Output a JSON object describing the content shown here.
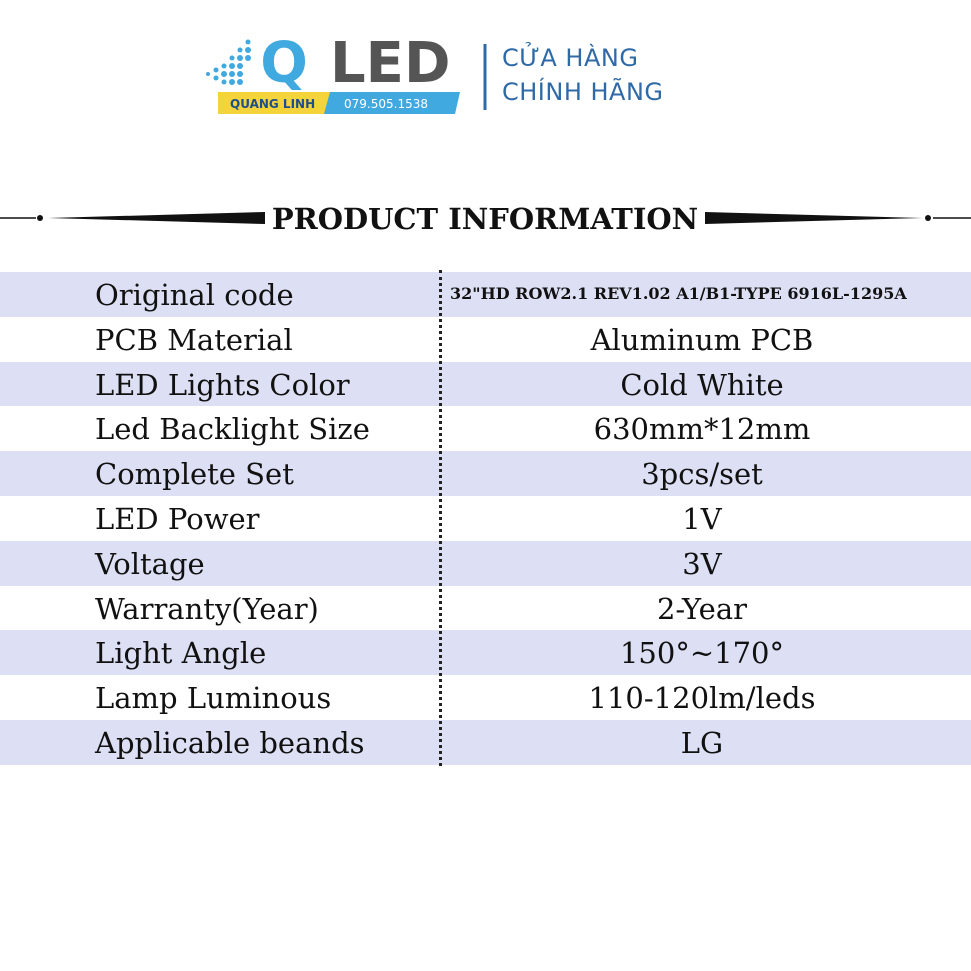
{
  "header": {
    "logo_letter": "Q",
    "logo_word": "LED",
    "brand": "QUANG LINH",
    "phone": "079.505.1538",
    "tagline": [
      "CỬA HÀNG",
      "CHÍNH HÃNG"
    ]
  },
  "heading": "PRODUCT INFORMATION",
  "table": {
    "rows": [
      [
        "Original code",
        "32\"HD ROW2.1 REV1.02 A1/B1-TYPE 6916L-1295A"
      ],
      [
        "PCB Material",
        "Aluminum PCB"
      ],
      [
        "LED Lights Color",
        "Cold White"
      ],
      [
        "Led Backlight Size",
        "630mm*12mm"
      ],
      [
        "Complete Set",
        "3pcs/set"
      ],
      [
        "LED Power",
        "1V"
      ],
      [
        "Voltage",
        "3V"
      ],
      [
        "Warranty(Year)",
        "2-Year"
      ],
      [
        "Light Angle",
        "150°~170°"
      ],
      [
        "Lamp Luminous",
        "110-120lm/leds"
      ],
      [
        "Applicable beands",
        "LG"
      ]
    ]
  }
}
